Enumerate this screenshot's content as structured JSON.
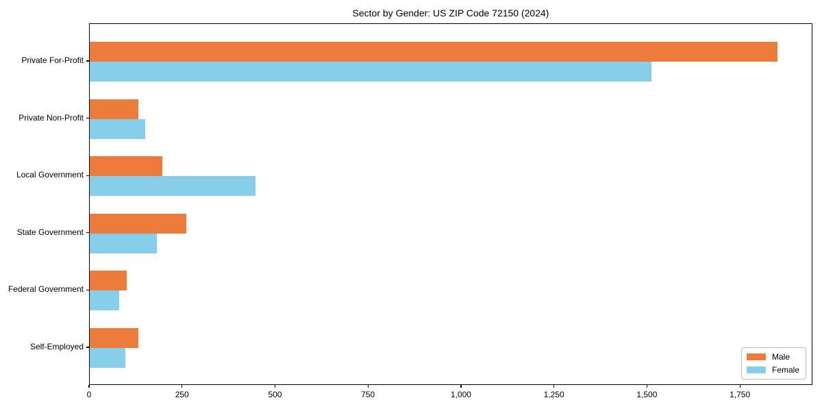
{
  "title": "Sector by Gender: US ZIP Code 72150 (2024)",
  "chart_data": {
    "type": "bar",
    "orientation": "horizontal",
    "title": "Sector by Gender: US ZIP Code 72150 (2024)",
    "xlabel": "",
    "ylabel": "",
    "categories": [
      "Private For-Profit",
      "Private Non-Profit",
      "Local Government",
      "State Government",
      "Federal Government",
      "Self-Employed"
    ],
    "series": [
      {
        "name": "Male",
        "color": "#ED7B3C",
        "values": [
          1850,
          130,
          195,
          260,
          100,
          130
        ]
      },
      {
        "name": "Female",
        "color": "#87CEEB",
        "values": [
          1510,
          150,
          445,
          180,
          80,
          95
        ]
      }
    ],
    "xlim": [
      0,
      1945
    ],
    "xticks": [
      0,
      250,
      500,
      750,
      1000,
      1250,
      1500,
      1750
    ],
    "xtick_labels": [
      "0",
      "250",
      "500",
      "750",
      "1,000",
      "1,250",
      "1,500",
      "1,750"
    ],
    "grid": false,
    "legend_position": "lower right"
  },
  "colors": {
    "male": "#ED7B3C",
    "female": "#87CEEB",
    "axis": "#000000",
    "text": "#000000",
    "background": "#ffffff",
    "legend_border": "#bbbbbb"
  }
}
